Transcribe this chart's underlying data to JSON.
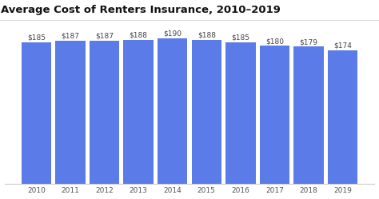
{
  "title": "Average Cost of Renters Insurance, 2010–2019",
  "years": [
    2010,
    2011,
    2012,
    2013,
    2014,
    2015,
    2016,
    2017,
    2018,
    2019
  ],
  "values": [
    185,
    187,
    187,
    188,
    190,
    188,
    185,
    180,
    179,
    174
  ],
  "bar_color": "#5b7be8",
  "background_color": "#ffffff",
  "grid_color": "#dddddd",
  "title_fontsize": 9.5,
  "label_fontsize": 6.5,
  "tick_fontsize": 6.5,
  "label_color": "#444444",
  "tick_color": "#555555",
  "title_color": "#111111",
  "ylim": [
    0,
    215
  ],
  "bar_width": 0.88
}
